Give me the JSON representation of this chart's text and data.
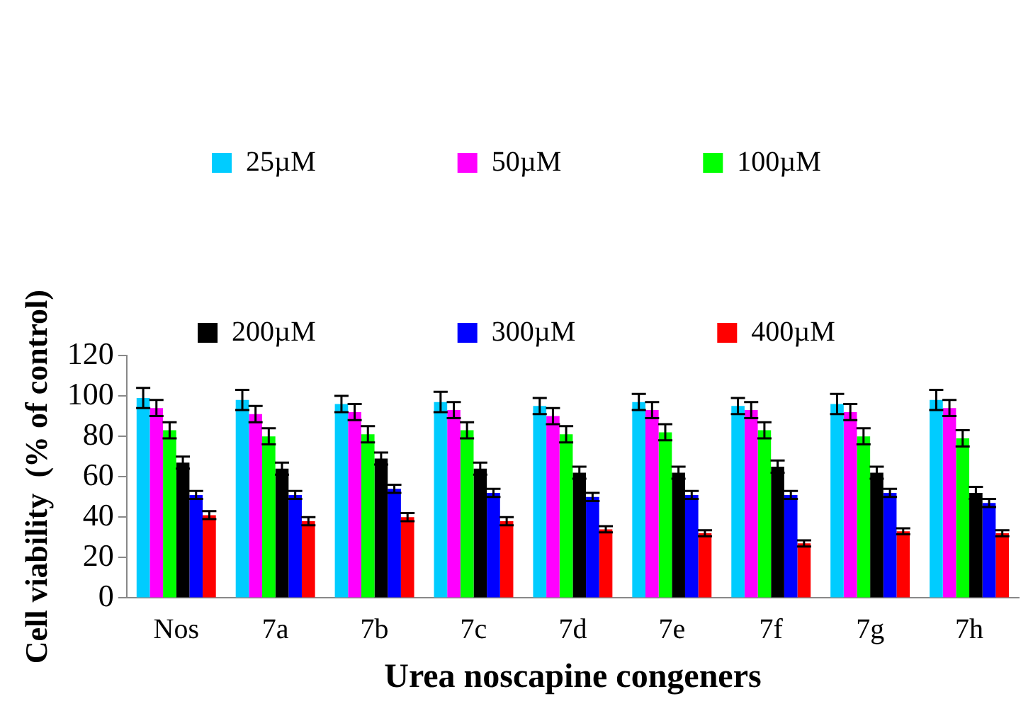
{
  "chart_data": {
    "type": "bar",
    "xlabel": "Urea noscapine congeners",
    "ylabel": "Cell viability  (% of control)",
    "categories": [
      "Nos",
      "7a",
      "7b",
      "7c",
      "7d",
      "7e",
      "7f",
      "7g",
      "7h"
    ],
    "ylim": [
      0,
      120
    ],
    "yticks": [
      0,
      20,
      40,
      60,
      80,
      100,
      120
    ],
    "grid": false,
    "legend": "top",
    "series": [
      {
        "name": "25µM",
        "color": "#00ccff",
        "values": [
          99,
          98,
          96,
          97,
          95,
          97,
          95,
          96,
          98
        ],
        "errors": [
          5,
          5,
          4,
          5,
          4,
          4,
          4,
          5,
          5
        ]
      },
      {
        "name": "50µM",
        "color": "#ff00ff",
        "values": [
          94,
          91,
          92,
          93,
          90,
          93,
          93,
          92,
          94
        ],
        "errors": [
          4,
          4,
          4,
          4,
          4,
          4,
          4,
          4,
          4
        ]
      },
      {
        "name": "100µM",
        "color": "#00ff00",
        "values": [
          83,
          80,
          81,
          83,
          81,
          82,
          83,
          80,
          79
        ],
        "errors": [
          4,
          4,
          4,
          4,
          4,
          4,
          4,
          4,
          4
        ]
      },
      {
        "name": "200µM",
        "color": "#000000",
        "values": [
          67,
          64,
          69,
          64,
          62,
          62,
          65,
          62,
          52
        ],
        "errors": [
          3,
          3,
          3,
          3,
          3,
          3,
          3,
          3,
          3
        ]
      },
      {
        "name": "300µM",
        "color": "#0000ff",
        "values": [
          51,
          51,
          54,
          52,
          50,
          51,
          51,
          52,
          47
        ],
        "errors": [
          2,
          2,
          2,
          2,
          2,
          2,
          2,
          2,
          2
        ]
      },
      {
        "name": "400µM",
        "color": "#ff0000",
        "values": [
          41,
          38,
          40,
          38,
          34,
          32,
          27,
          33,
          32
        ],
        "errors": [
          2,
          2,
          2,
          2,
          1.5,
          1.5,
          1.5,
          1.5,
          1.5
        ]
      }
    ]
  }
}
